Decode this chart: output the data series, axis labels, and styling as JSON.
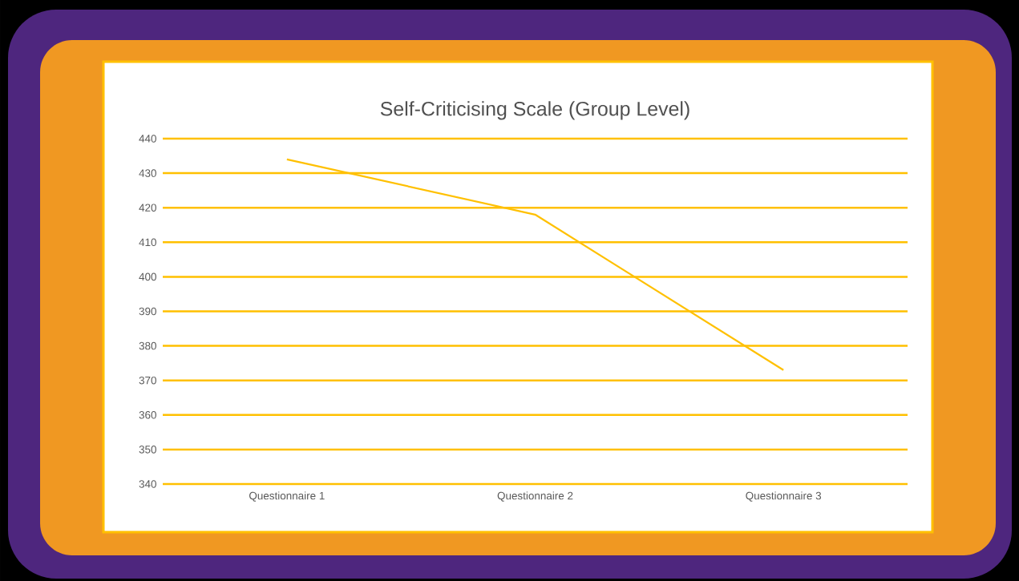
{
  "chart_data": {
    "type": "line",
    "title": "Self-Criticising Scale (Group Level)",
    "categories": [
      "Questionnaire 1",
      "Questionnaire 2",
      "Questionnaire 3"
    ],
    "values": [
      434,
      418,
      373
    ],
    "color": "#ffc000",
    "ylim": [
      340,
      440
    ],
    "yticks": [
      340,
      350,
      360,
      370,
      380,
      390,
      400,
      410,
      420,
      430,
      440
    ],
    "grid": "y"
  }
}
